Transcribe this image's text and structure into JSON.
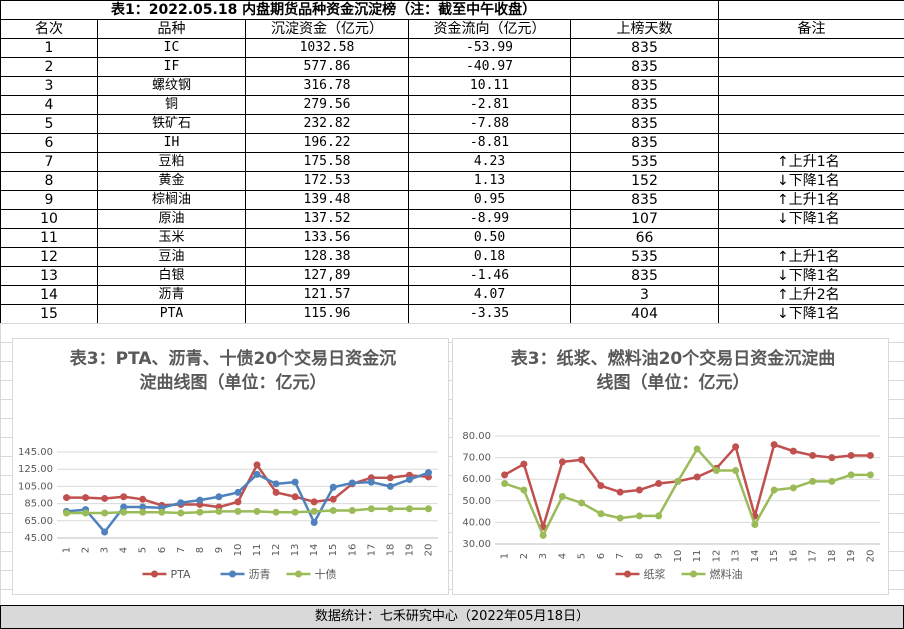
{
  "table": {
    "title": "表1：2022.05.18 内盘期货品种资金沉淀榜（注：截至中午收盘）",
    "header": [
      "名次",
      "品种",
      "沉淀资金（亿元）",
      "资金流向（亿元）",
      "上榜天数",
      "备注"
    ],
    "rows": [
      [
        "1",
        "IC",
        "1032.58",
        "-53.99",
        "835",
        ""
      ],
      [
        "2",
        "IF",
        "577.86",
        "-40.97",
        "835",
        ""
      ],
      [
        "3",
        "螺纹钢",
        "316.78",
        "10.11",
        "835",
        ""
      ],
      [
        "4",
        "铜",
        "279.56",
        "-2.81",
        "835",
        ""
      ],
      [
        "5",
        "铁矿石",
        "232.82",
        "-7.88",
        "835",
        ""
      ],
      [
        "6",
        "IH",
        "196.22",
        "-8.81",
        "835",
        ""
      ],
      [
        "7",
        "豆粕",
        "175.58",
        "4.23",
        "535",
        "↑上升1名"
      ],
      [
        "8",
        "黄金",
        "172.53",
        "1.13",
        "152",
        "↓下降1名"
      ],
      [
        "9",
        "棕榈油",
        "139.48",
        "0.95",
        "835",
        "↑上升1名"
      ],
      [
        "10",
        "原油",
        "137.52",
        "-8.99",
        "107",
        "↓下降1名"
      ],
      [
        "11",
        "玉米",
        "133.56",
        "0.50",
        "66",
        ""
      ],
      [
        "12",
        "豆油",
        "128.38",
        "0.18",
        "535",
        "↑上升1名"
      ],
      [
        "13",
        "白银",
        "127,89",
        "-1.46",
        "835",
        "↓下降1名"
      ],
      [
        "14",
        "沥青",
        "121.57",
        "4.07",
        "3",
        "↑上升2名"
      ],
      [
        "15",
        "PTA",
        "115.96",
        "-3.35",
        "404",
        "↓下降1名"
      ]
    ]
  },
  "chart_data": [
    {
      "type": "line",
      "title": "表3：PTA、沥青、十债20个交易日资金沉淀曲线图（单位：亿元）",
      "categories": [
        "1",
        "2",
        "3",
        "4",
        "5",
        "6",
        "7",
        "8",
        "9",
        "10",
        "11",
        "12",
        "13",
        "14",
        "15",
        "16",
        "17",
        "18",
        "19",
        "20"
      ],
      "ylim": [
        45,
        145
      ],
      "yticks": [
        {
          "value": 45,
          "label": "45.00"
        },
        {
          "value": 65,
          "label": "65.00"
        },
        {
          "value": 85,
          "label": "85.00"
        },
        {
          "value": 105,
          "label": "105.00"
        },
        {
          "value": 125,
          "label": "125.00"
        },
        {
          "value": 145,
          "label": "145.00"
        }
      ],
      "grid": true,
      "legend": "bottom",
      "series": [
        {
          "name": "PTA",
          "color": "#c0504d",
          "values": [
            92,
            92,
            91,
            93,
            90,
            83,
            84,
            84,
            81,
            87,
            130,
            98,
            93,
            87,
            90,
            108,
            115,
            115,
            118,
            116
          ]
        },
        {
          "name": "沥青",
          "color": "#4f81bd",
          "values": [
            76,
            78,
            52,
            81,
            81,
            80,
            86,
            89,
            93,
            98,
            119,
            108,
            110,
            63,
            104,
            109,
            110,
            105,
            113,
            121
          ]
        },
        {
          "name": "十债",
          "color": "#9bbb59",
          "values": [
            74,
            74,
            74,
            75,
            75,
            75,
            74,
            75,
            76,
            76,
            76,
            75,
            75,
            76,
            77,
            77,
            79,
            79,
            79,
            79
          ]
        }
      ]
    },
    {
      "type": "line",
      "title": "表3：纸浆、燃料油20个交易日资金沉淀曲线图（单位：亿元）",
      "categories": [
        "1",
        "2",
        "3",
        "4",
        "5",
        "6",
        "7",
        "8",
        "9",
        "10",
        "11",
        "12",
        "13",
        "14",
        "15",
        "16",
        "17",
        "18",
        "19",
        "20"
      ],
      "ylim": [
        30,
        80
      ],
      "yticks": [
        {
          "value": 30,
          "label": "30.00"
        },
        {
          "value": 40,
          "label": "40.00"
        },
        {
          "value": 50,
          "label": "50.00"
        },
        {
          "value": 60,
          "label": "60.00"
        },
        {
          "value": 70,
          "label": "70.00"
        },
        {
          "value": 80,
          "label": "80.00"
        }
      ],
      "grid": true,
      "legend": "bottom",
      "series": [
        {
          "name": "纸浆",
          "color": "#c0504d",
          "values": [
            62,
            67,
            38,
            68,
            69,
            57,
            54,
            55,
            58,
            59,
            61,
            65,
            75,
            43,
            76,
            73,
            71,
            70,
            71,
            71
          ]
        },
        {
          "name": "燃料油",
          "color": "#9bbb59",
          "values": [
            58,
            55,
            34,
            52,
            49,
            44,
            42,
            43,
            43,
            59,
            74,
            64,
            64,
            39,
            55,
            56,
            59,
            59,
            62,
            62
          ]
        }
      ]
    }
  ],
  "footer": "数据统计：七禾研究中心（2022年05月18日）"
}
